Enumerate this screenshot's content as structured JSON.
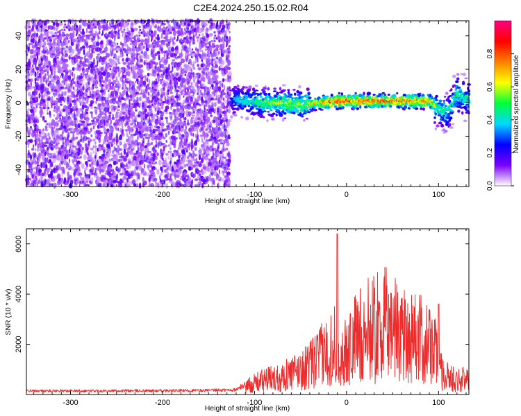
{
  "title": "C2E4.2024.250.15.02.R04",
  "chart_data": [
    {
      "type": "heatmap",
      "xlabel": "Height of straight line (km)",
      "ylabel": "Frequency (Hz)",
      "xlim": [
        -348,
        133
      ],
      "ylim": [
        -50,
        49
      ],
      "xticks": [
        -300,
        -200,
        -100,
        0,
        100
      ],
      "yticks": [
        -40,
        -20,
        0,
        20,
        40
      ],
      "colorbar": {
        "label": "Normalized spectral amplitude",
        "range": [
          0,
          1
        ],
        "ticks": [
          0.0,
          0.2,
          0.4,
          0.6,
          0.8
        ],
        "tick_labels": [
          "0.0",
          "0.2",
          "0.4",
          "0.6",
          "0.8"
        ],
        "colormap": [
          "#ffffff",
          "#7b00ff",
          "#0000ff",
          "#00d9ff",
          "#00ff3a",
          "#ffff00",
          "#ff7f00",
          "#ff0000",
          "#ff0080"
        ]
      },
      "features": [
        {
          "name": "noise",
          "x_range": [
            -348,
            -128
          ],
          "y_range": [
            -50,
            49
          ],
          "level": 0.15
        },
        {
          "name": "ridge",
          "x": [
            -125,
            -110,
            -90,
            -70,
            -50,
            -30,
            -10,
            10,
            30,
            50,
            70,
            90,
            100,
            110,
            120,
            133
          ],
          "y": [
            2,
            1,
            0,
            0,
            -1,
            0,
            1,
            1,
            1,
            1,
            1,
            1,
            -3,
            -6,
            5,
            2
          ],
          "peak_level": [
            0.35,
            0.45,
            0.55,
            0.6,
            0.6,
            0.75,
            0.9,
            0.85,
            0.85,
            0.85,
            0.85,
            0.8,
            0.5,
            0.45,
            0.5,
            0.45
          ]
        }
      ]
    },
    {
      "type": "line",
      "xlabel": "Height of straight line (km)",
      "ylabel": "SNR (10 * v/v)",
      "xlim": [
        -348,
        133
      ],
      "ylim": [
        0,
        6600
      ],
      "xticks": [
        -300,
        -200,
        -100,
        0,
        100
      ],
      "yticks": [
        2000,
        4000,
        6000
      ],
      "color": "#ee2c2c",
      "series": [
        {
          "x": [
            -348,
            -300,
            -250,
            -200,
            -150,
            -120,
            -110,
            -100,
            -90,
            -80,
            -70,
            -60,
            -50,
            -40,
            -30,
            -20,
            -15,
            -10,
            -5,
            0,
            10,
            20,
            30,
            40,
            45,
            50,
            60,
            70,
            80,
            90,
            100,
            105,
            110,
            120,
            133
          ],
          "y": [
            180,
            180,
            185,
            185,
            200,
            230,
            500,
            700,
            900,
            1000,
            1100,
            1300,
            1500,
            1800,
            2300,
            2700,
            3200,
            2800,
            2300,
            2600,
            3500,
            3900,
            4100,
            4300,
            4400,
            4200,
            4000,
            3700,
            3400,
            3000,
            2400,
            1300,
            1100,
            900,
            950
          ]
        }
      ],
      "annotations": [
        {
          "x": -10,
          "y": 6400,
          "label": "spike"
        },
        {
          "x": 100,
          "y": 3600,
          "label": "spike"
        }
      ]
    }
  ]
}
